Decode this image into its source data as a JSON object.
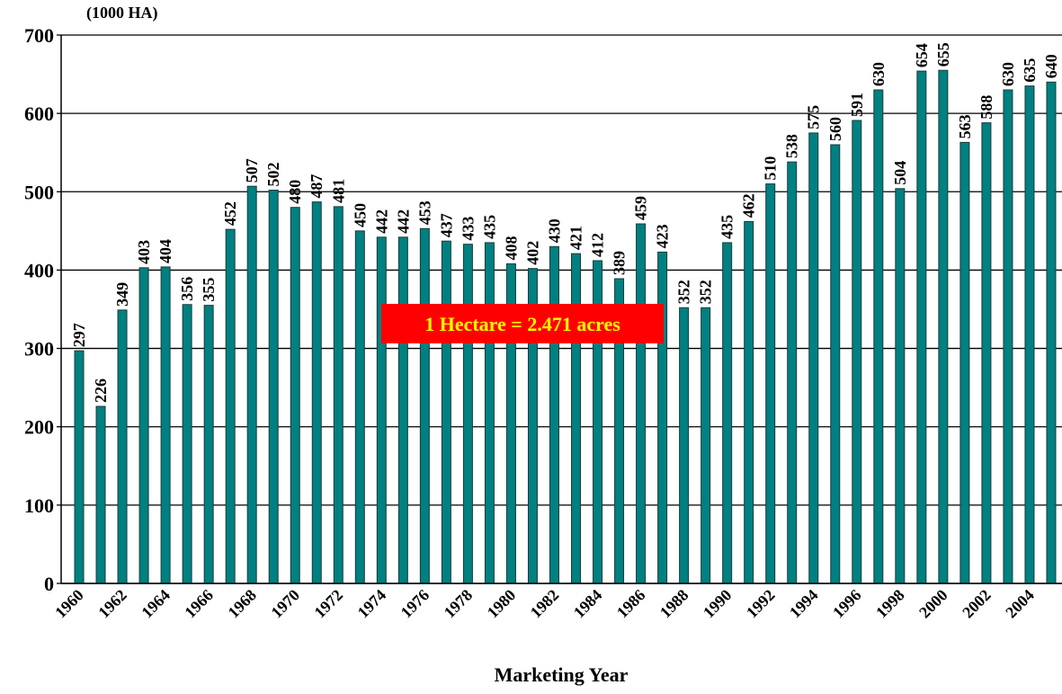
{
  "chart_data": {
    "type": "bar",
    "y_axis_label": "(1000 HA)",
    "x_axis_label": "Marketing Year",
    "annotation": "1 Hectare = 2.471 acres",
    "categories": [
      "1960",
      null,
      "1962",
      null,
      "1964",
      null,
      "1966",
      null,
      "1968",
      null,
      "1970",
      null,
      "1972",
      null,
      "1974",
      null,
      "1976",
      null,
      "1978",
      null,
      "1980",
      null,
      "1982",
      null,
      "1984",
      null,
      "1986",
      null,
      "1988",
      null,
      "1990",
      null,
      "1992",
      null,
      "1994",
      null,
      "1996",
      null,
      "1998",
      null,
      "2000",
      null,
      "2002",
      null,
      "2004",
      null
    ],
    "values": [
      297,
      226,
      349,
      403,
      404,
      356,
      355,
      452,
      507,
      502,
      480,
      487,
      481,
      450,
      442,
      442,
      453,
      437,
      433,
      435,
      408,
      402,
      430,
      421,
      412,
      389,
      459,
      423,
      352,
      352,
      435,
      462,
      510,
      538,
      575,
      560,
      591,
      630,
      504,
      654,
      655,
      563,
      588,
      630,
      635,
      640
    ],
    "color": "#008080",
    "ylim": [
      0,
      700
    ],
    "yticks": [
      0,
      100,
      200,
      300,
      400,
      500,
      600,
      700
    ],
    "grid": true
  }
}
